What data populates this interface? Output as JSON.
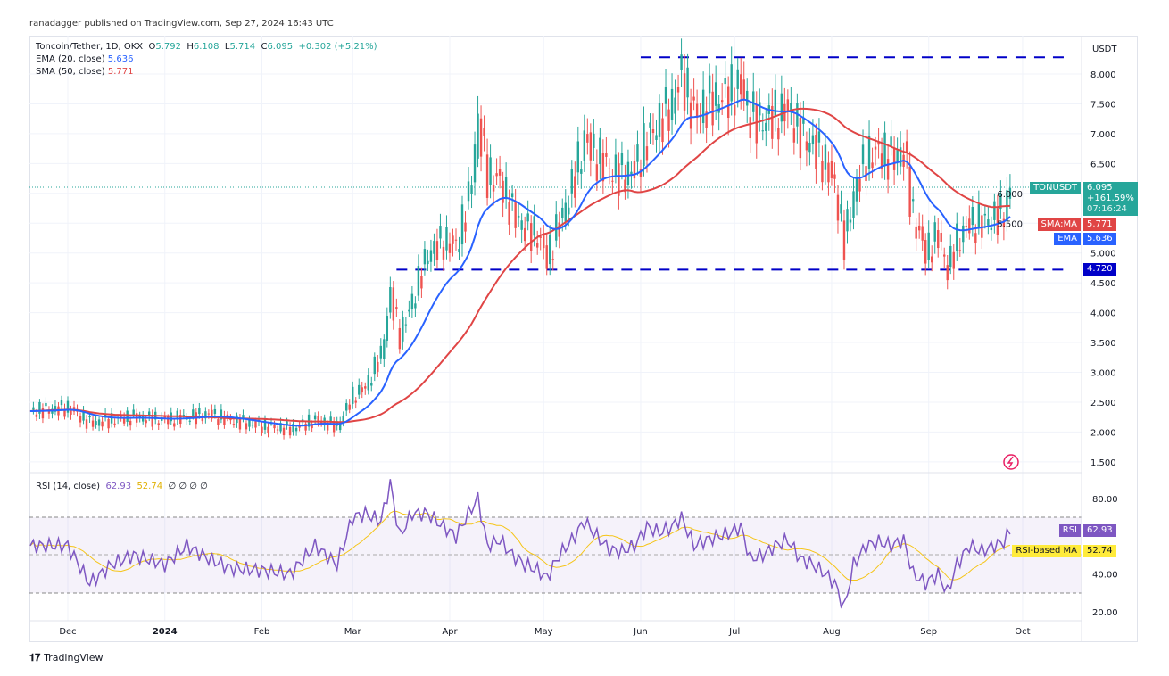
{
  "header": {
    "published": "ranadagger published on TradingView.com, Sep 27, 2024 16:43 UTC"
  },
  "legend": {
    "symbol": "Toncoin/Tether, 1D, OKX",
    "o_label": "O",
    "o": "5.792",
    "h_label": "H",
    "h": "6.108",
    "l_label": "L",
    "l": "5.714",
    "c_label": "C",
    "c": "6.095",
    "change": "+0.302 (+5.21%)",
    "ema_label": "EMA (20, close)",
    "ema": "5.636",
    "sma_label": "SMA (50, close)",
    "sma": "5.771",
    "rsi_label": "RSI (14, close)",
    "rsi": "62.93",
    "rsi_ma": "52.74",
    "rsi_extra": "∅ ∅ ∅ ∅"
  },
  "axis": {
    "currency": "USDT",
    "price_ticks": [
      "8.000",
      "7.500",
      "7.000",
      "6.500",
      "6.000",
      "5.500",
      "5.000",
      "4.500",
      "4.000",
      "3.500",
      "3.000",
      "2.500",
      "2.000",
      "1.500"
    ],
    "rsi_ticks": [
      "80.00",
      "40.00",
      "20.00"
    ],
    "time_ticks": [
      "Dec",
      "2024",
      "Feb",
      "Mar",
      "Apr",
      "May",
      "Jun",
      "Jul",
      "Aug",
      "Sep",
      "Oct"
    ]
  },
  "tags": {
    "symbol": "TONUSDT",
    "price": "6.095",
    "change": "+161.59%",
    "countdown": "07:16:24",
    "sma_label": "SMA:MA",
    "sma": "5.771",
    "ema_label": "EMA",
    "ema": "5.636",
    "level": "4.720",
    "rsi_label": "RSI",
    "rsi": "62.93",
    "rsi_ma_label": "RSI-based MA",
    "rsi_ma": "52.74"
  },
  "colors": {
    "up": "#26a69a",
    "down": "#ef5350",
    "ema": "#2962ff",
    "sma": "#e04545",
    "rsi": "#7e57c2",
    "rsi_ma": "#f5c518",
    "level": "#0000c8"
  },
  "footer": {
    "brand": "TradingView"
  },
  "chart_data": {
    "type": "candlestick",
    "ylim": [
      1.3,
      8.4
    ],
    "rsi_ylim": [
      15,
      95
    ],
    "levels": [
      {
        "value": 8.28,
        "from": "2024-06-01"
      },
      {
        "value": 4.72,
        "from": "2024-03-15"
      }
    ],
    "dates": [
      "2023-11-19",
      "2023-12-01",
      "2023-12-08",
      "2023-12-15",
      "2023-12-22",
      "2024-01-01",
      "2024-01-08",
      "2024-01-15",
      "2024-01-22",
      "2024-02-01",
      "2024-02-10",
      "2024-02-18",
      "2024-02-25",
      "2024-03-01",
      "2024-03-05",
      "2024-03-10",
      "2024-03-13",
      "2024-03-16",
      "2024-03-20",
      "2024-03-25",
      "2024-03-30",
      "2024-04-03",
      "2024-04-07",
      "2024-04-10",
      "2024-04-13",
      "2024-04-17",
      "2024-04-21",
      "2024-04-25",
      "2024-04-29",
      "2024-05-02",
      "2024-05-06",
      "2024-05-10",
      "2024-05-14",
      "2024-05-18",
      "2024-05-22",
      "2024-05-26",
      "2024-05-30",
      "2024-06-03",
      "2024-06-07",
      "2024-06-11",
      "2024-06-14",
      "2024-06-18",
      "2024-06-22",
      "2024-06-26",
      "2024-06-30",
      "2024-07-03",
      "2024-07-06",
      "2024-07-10",
      "2024-07-14",
      "2024-07-18",
      "2024-07-22",
      "2024-07-26",
      "2024-07-30",
      "2024-08-02",
      "2024-08-05",
      "2024-08-08",
      "2024-08-12",
      "2024-08-16",
      "2024-08-20",
      "2024-08-24",
      "2024-08-27",
      "2024-08-31",
      "2024-09-04",
      "2024-09-07",
      "2024-09-10",
      "2024-09-14",
      "2024-09-18",
      "2024-09-22",
      "2024-09-25",
      "2024-09-27"
    ],
    "close": [
      2.35,
      2.4,
      2.15,
      2.2,
      2.25,
      2.2,
      2.25,
      2.3,
      2.2,
      2.1,
      2.05,
      2.2,
      2.1,
      2.6,
      2.75,
      3.3,
      4.3,
      3.6,
      4.2,
      5.0,
      5.2,
      5.1,
      5.9,
      7.2,
      6.3,
      6.2,
      5.7,
      5.4,
      5.3,
      4.9,
      5.5,
      6.1,
      6.9,
      6.6,
      6.4,
      6.3,
      6.4,
      6.9,
      7.2,
      7.5,
      8.0,
      7.3,
      7.5,
      7.6,
      7.7,
      7.8,
      7.3,
      7.2,
      7.3,
      7.4,
      7.0,
      6.8,
      6.5,
      6.1,
      5.2,
      6.0,
      6.6,
      6.7,
      6.6,
      6.7,
      5.6,
      5.0,
      5.3,
      4.7,
      5.2,
      5.5,
      5.5,
      5.6,
      5.7,
      6.095
    ],
    "rsi": [
      55,
      55,
      35,
      45,
      50,
      45,
      55,
      48,
      43,
      42,
      40,
      55,
      45,
      70,
      72,
      68,
      88,
      60,
      72,
      72,
      65,
      60,
      72,
      80,
      55,
      58,
      50,
      45,
      42,
      38,
      50,
      58,
      68,
      60,
      53,
      52,
      55,
      65,
      62,
      65,
      70,
      55,
      58,
      60,
      62,
      65,
      48,
      50,
      55,
      58,
      48,
      45,
      40,
      35,
      22,
      45,
      55,
      57,
      55,
      58,
      40,
      35,
      40,
      30,
      45,
      55,
      52,
      55,
      57,
      62.93
    ]
  }
}
